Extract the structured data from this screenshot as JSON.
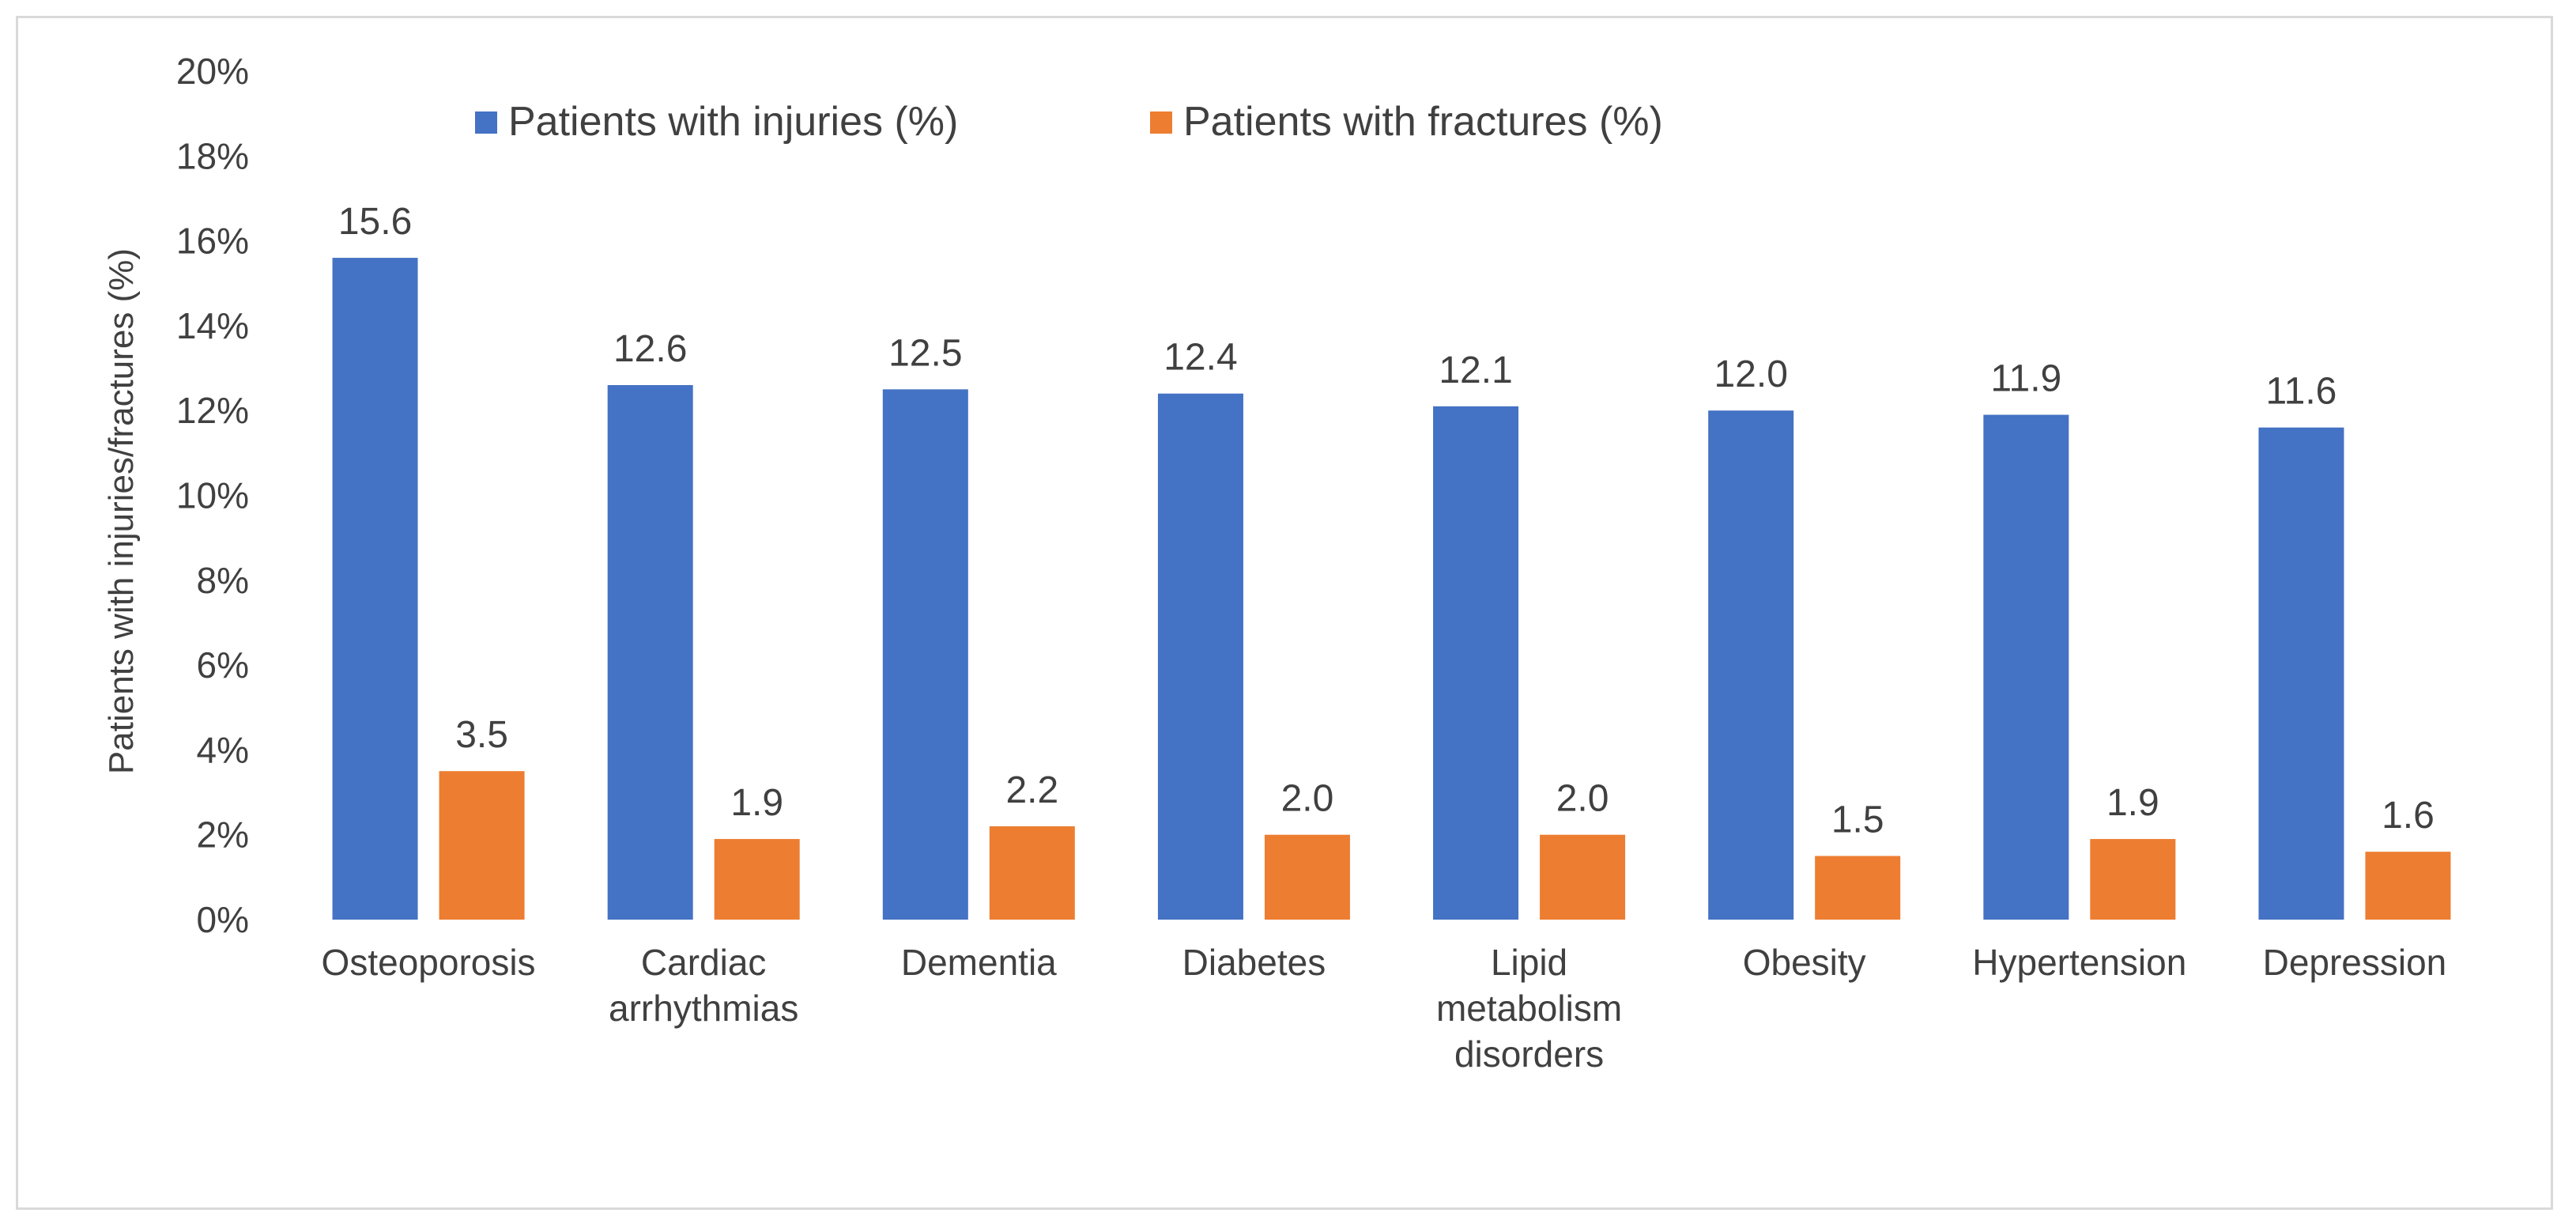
{
  "chart_data": {
    "type": "bar",
    "title": "",
    "xlabel": "",
    "ylabel": "Patients with injuries/fractures (%)",
    "ylim": [
      0,
      20
    ],
    "y_tick_step": 2,
    "y_tick_labels": [
      "0%",
      "2%",
      "4%",
      "6%",
      "8%",
      "10%",
      "12%",
      "14%",
      "16%",
      "18%",
      "20%"
    ],
    "grid": false,
    "legend_position": "top",
    "categories": [
      [
        "Osteoporosis"
      ],
      [
        "Cardiac",
        "arrhythmias"
      ],
      [
        "Dementia"
      ],
      [
        "Diabetes"
      ],
      [
        "Lipid",
        "metabolism",
        "disorders"
      ],
      [
        "Obesity"
      ],
      [
        "Hypertension"
      ],
      [
        "Depression"
      ]
    ],
    "series": [
      {
        "name": "Patients with injuries (%)",
        "color": "#4472C4",
        "values": [
          15.6,
          12.6,
          12.5,
          12.4,
          12.1,
          12.0,
          11.9,
          11.6
        ],
        "labels": [
          "15.6",
          "12.6",
          "12.5",
          "12.4",
          "12.1",
          "12.0",
          "11.9",
          "11.6"
        ]
      },
      {
        "name": "Patients with fractures (%)",
        "color": "#ED7D31",
        "values": [
          3.5,
          1.9,
          2.2,
          2.0,
          2.0,
          1.5,
          1.9,
          1.6
        ],
        "labels": [
          "3.5",
          "1.9",
          "2.2",
          "2.0",
          "2.0",
          "1.5",
          "1.9",
          "1.6"
        ]
      }
    ]
  }
}
